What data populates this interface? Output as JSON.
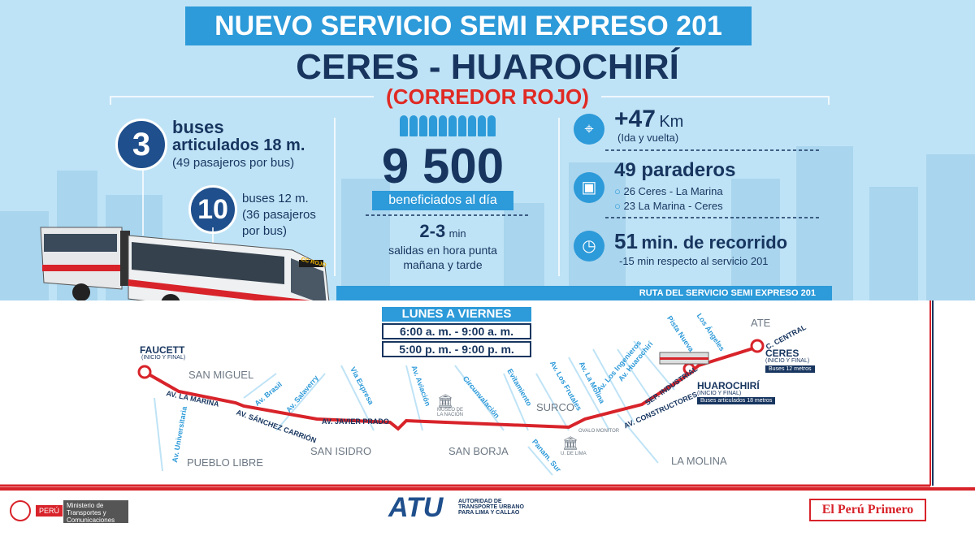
{
  "header": {
    "title": "NUEVO SERVICIO SEMI EXPRESO 201",
    "subtitle": "CERES - HUAROCHIRÍ",
    "corridor": "(CORREDOR ROJO)"
  },
  "fleet": {
    "articulated_count": "3",
    "articulated_line1": "buses",
    "articulated_line2": "articulados 18 m.",
    "articulated_line3": "(49 pasajeros por bus)",
    "regular_count": "10",
    "regular_line1": "buses 12 m.",
    "regular_line2": "(36 pasajeros",
    "regular_line3": "por bus)",
    "bus_sign": "CC ROJO"
  },
  "beneficiaries": {
    "value": "9 500",
    "label": "beneficiados al día",
    "freq_value": "2-3",
    "freq_unit": "min",
    "freq_line1": "salidas en hora punta",
    "freq_line2": "mañana y tarde"
  },
  "stats": {
    "distance_value": "+47",
    "distance_unit": "Km",
    "distance_note": "(Ida y vuelta)",
    "stops_value": "49 paraderos",
    "stops_item1": "26 Ceres - La Marina",
    "stops_item2": "23 La Marina - Ceres",
    "time_value": "51",
    "time_label": "min. de recorrido",
    "time_note": "-15 min respecto al servicio 201"
  },
  "map": {
    "route_title": "RUTA DEL SERVICIO SEMI EXPRESO 201",
    "schedule_title": "LUNES A VIERNES",
    "schedule_1": "6:00 a. m. - 9:00 a. m.",
    "schedule_2": "5:00 p. m. - 9:00 p. m.",
    "start_name": "FAUCETT",
    "start_note": "(INICIO Y FINAL)",
    "end_name": "CERES",
    "end_note": "(INICIO Y FINAL)",
    "end_badge": "Buses 12 metros",
    "mid_name": "HUAROCHIRÍ",
    "mid_note": "(INICIO Y FINAL)",
    "mid_badge": "Buses articulados 18 metros",
    "districts": [
      "SAN MIGUEL",
      "PUEBLO LIBRE",
      "SAN ISIDRO",
      "SAN BORJA",
      "SURCO",
      "LA MOLINA",
      "ATE"
    ],
    "roads": [
      "AV. LA MARINA",
      "Av. Universitaria",
      "Av. Brasil",
      "AV. SÁNCHEZ CARRIÓN",
      "Av. Salaverry",
      "Vía Expresa",
      "AV. JAVIER PRADO",
      "Av. Aviación",
      "Circunvalación",
      "Evitamiento",
      "Av. Los Frutales",
      "Av. La Molina",
      "Av. Los Ingenieros",
      "Av. Huarochirí",
      "AV. CONSTRUCTORES",
      "SEP. INDUSTRIAL",
      "Pista Nueva",
      "Los Ángeles",
      "C. CENTRAL",
      "Panam. Sur"
    ],
    "landmarks": [
      "MUSEO DE LA NACIÓN",
      "OVALO MONITOR",
      "U. DE LIMA"
    ]
  },
  "footer": {
    "ministry_country": "PERÚ",
    "ministry_name": "Ministerio de Transportes y Comunicaciones",
    "atu_logo": "ATU",
    "atu_text": "AUTORIDAD DE TRANSPORTE URBANO PARA LIMA Y CALLAO",
    "slogan": "El Perú Primero"
  }
}
